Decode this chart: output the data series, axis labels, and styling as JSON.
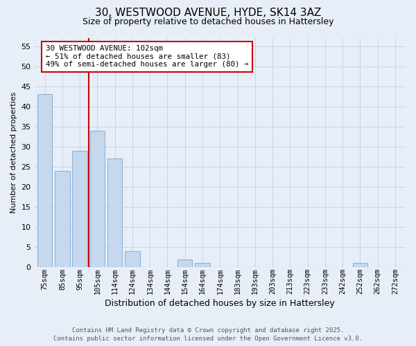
{
  "title_line1": "30, WESTWOOD AVENUE, HYDE, SK14 3AZ",
  "title_line2": "Size of property relative to detached houses in Hattersley",
  "xlabel": "Distribution of detached houses by size in Hattersley",
  "ylabel": "Number of detached properties",
  "categories": [
    "75sqm",
    "85sqm",
    "95sqm",
    "105sqm",
    "114sqm",
    "124sqm",
    "134sqm",
    "144sqm",
    "154sqm",
    "164sqm",
    "174sqm",
    "183sqm",
    "193sqm",
    "203sqm",
    "213sqm",
    "223sqm",
    "233sqm",
    "242sqm",
    "252sqm",
    "262sqm",
    "272sqm"
  ],
  "values": [
    43,
    24,
    29,
    34,
    27,
    4,
    0,
    0,
    2,
    1,
    0,
    0,
    0,
    0,
    0,
    0,
    0,
    0,
    1,
    0,
    0
  ],
  "bar_color": "#c5d8ee",
  "bar_edge_color": "#8ab4d8",
  "background_color": "#e8eef8",
  "grid_color": "#c8d4e8",
  "vline_pos": 2.5,
  "vline_color": "#cc0000",
  "annotation_text": "30 WESTWOOD AVENUE: 102sqm\n← 51% of detached houses are smaller (83)\n49% of semi-detached houses are larger (80) →",
  "annotation_box_facecolor": "#ffffff",
  "annotation_box_edgecolor": "#cc0000",
  "ylim": [
    0,
    57
  ],
  "yticks": [
    0,
    5,
    10,
    15,
    20,
    25,
    30,
    35,
    40,
    45,
    50,
    55
  ],
  "footer_line1": "Contains HM Land Registry data © Crown copyright and database right 2025.",
  "footer_line2": "Contains public sector information licensed under the Open Government Licence v3.0."
}
